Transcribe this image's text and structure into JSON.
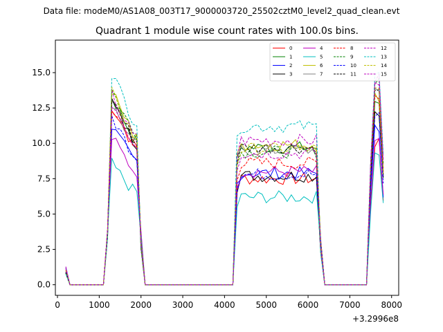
{
  "suptitle": "Data file: modeM0/AS1A08_003T17_9000003720_25502cztM0_level2_quad_clean.evt",
  "chart_data": {
    "type": "line",
    "title": "Quadrant 1 module wise count rates with 100.0s bins.",
    "xlabel": "",
    "ylabel": "",
    "offset_label": "+3.2996e8",
    "xlim": [
      -50,
      8170
    ],
    "ylim": [
      -0.75,
      17.3
    ],
    "xticks": [
      0,
      1000,
      2000,
      3000,
      4000,
      5000,
      6000,
      7000,
      8000
    ],
    "yticks": [
      0.0,
      2.5,
      5.0,
      7.5,
      10.0,
      12.5,
      15.0
    ],
    "ytick_labels": [
      "0.0",
      "2.5",
      "5.0",
      "7.5",
      "10.0",
      "12.5",
      "15.0"
    ],
    "legend_position": "top-right",
    "grid": false,
    "x": [
      200,
      300,
      400,
      500,
      600,
      700,
      800,
      900,
      1000,
      1100,
      1200,
      1300,
      1400,
      1500,
      1600,
      1700,
      1800,
      1900,
      2000,
      2100,
      2200,
      2300,
      2400,
      2500,
      2600,
      2700,
      2800,
      2900,
      3000,
      3100,
      3200,
      3300,
      3400,
      3500,
      3600,
      3700,
      3800,
      3900,
      4000,
      4100,
      4200,
      4300,
      4400,
      4500,
      4600,
      4700,
      4800,
      4900,
      5000,
      5100,
      5200,
      5300,
      5400,
      5500,
      5600,
      5700,
      5800,
      5900,
      6000,
      6100,
      6200,
      6300,
      6400,
      6500,
      6600,
      6700,
      6800,
      6900,
      7000,
      7100,
      7200,
      7300,
      7400,
      7500,
      7600,
      7700,
      7800
    ],
    "series": [
      {
        "name": "0",
        "color": "#ff0000",
        "dash": false,
        "active1": 11.3,
        "active2": 7.5,
        "active3": 10.0
      },
      {
        "name": "1",
        "color": "#008000",
        "dash": false,
        "active1": 11.9,
        "active2": 9.7,
        "active3": 13.0
      },
      {
        "name": "2",
        "color": "#0000ff",
        "dash": false,
        "active1": 10.0,
        "active2": 7.9,
        "active3": 11.0
      },
      {
        "name": "3",
        "color": "#000000",
        "dash": false,
        "active1": 11.6,
        "active2": 7.7,
        "active3": 12.3
      },
      {
        "name": "4",
        "color": "#bf00bf",
        "dash": false,
        "active1": 9.3,
        "active2": 8.0,
        "active3": 10.2
      },
      {
        "name": "5",
        "color": "#00bfbf",
        "dash": false,
        "active1": 7.6,
        "active2": 6.2,
        "active3": 9.4
      },
      {
        "name": "6",
        "color": "#bfbf00",
        "dash": false,
        "active1": 12.2,
        "active2": 9.9,
        "active3": 13.3
      },
      {
        "name": "7",
        "color": "#808080",
        "dash": false,
        "active1": 11.4,
        "active2": 9.5,
        "active3": 13.8
      },
      {
        "name": "8",
        "color": "#ff0000",
        "dash": true,
        "active1": 11.2,
        "active2": 8.6,
        "active3": 13.4
      },
      {
        "name": "9",
        "color": "#008000",
        "dash": true,
        "active1": 12.3,
        "active2": 9.4,
        "active3": 14.5
      },
      {
        "name": "10",
        "color": "#0000ff",
        "dash": true,
        "active1": 10.6,
        "active2": 7.8,
        "active3": 12.0
      },
      {
        "name": "11",
        "color": "#000000",
        "dash": true,
        "active1": 11.8,
        "active2": 9.7,
        "active3": 13.6
      },
      {
        "name": "12",
        "color": "#bf00bf",
        "dash": true,
        "active1": 12.0,
        "active2": 10.2,
        "active3": 14.2
      },
      {
        "name": "13",
        "color": "#00bfbf",
        "dash": true,
        "active1": 13.4,
        "active2": 11.2,
        "active3": 15.0
      },
      {
        "name": "14",
        "color": "#bfbf00",
        "dash": true,
        "active1": 12.1,
        "active2": 9.6,
        "active3": 13.8
      },
      {
        "name": "15",
        "color": "#bf00bf",
        "dash": true,
        "active1": 11.5,
        "active2": 9.3,
        "active3": 14.6
      }
    ]
  }
}
